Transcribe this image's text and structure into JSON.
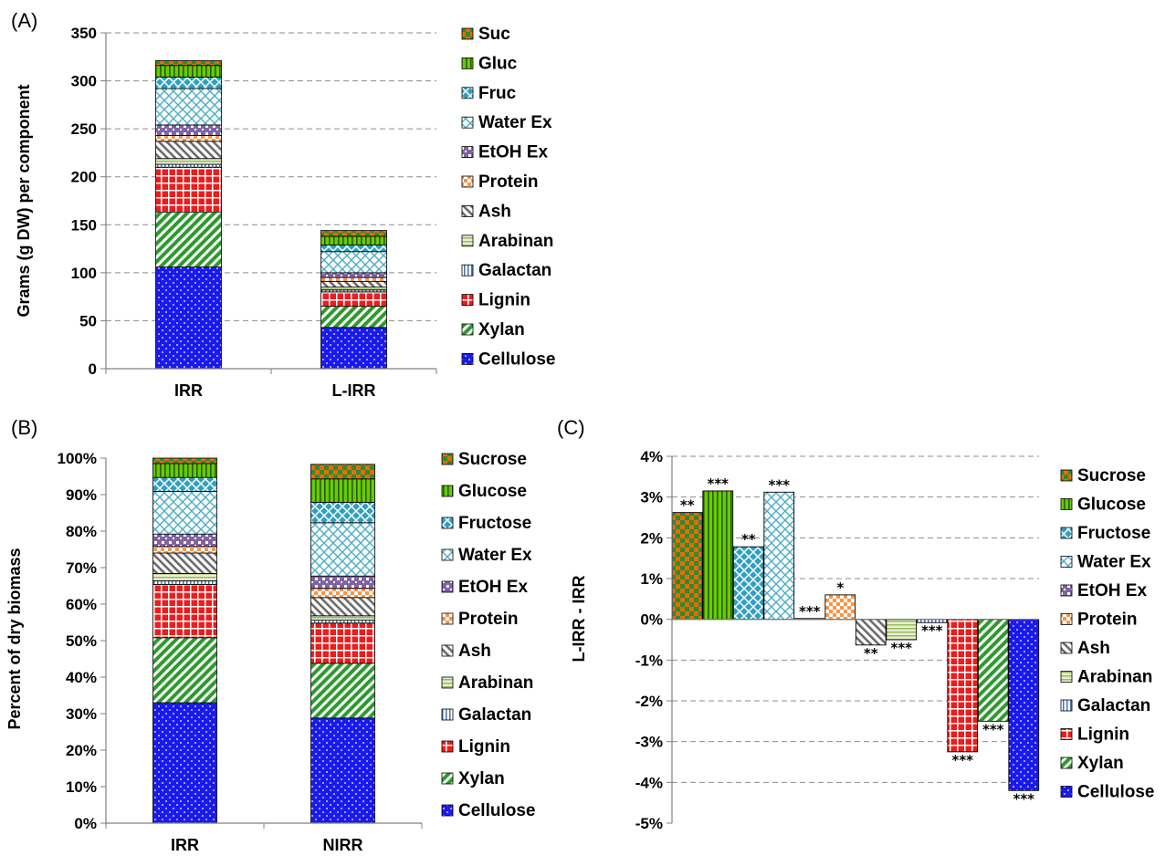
{
  "chart_data": [
    {
      "panel": "(A)",
      "type": "bar",
      "stacked": true,
      "ylabel": "Grams (g DW) per component",
      "ylim": [
        0,
        350
      ],
      "yticks": [
        "0",
        "50",
        "100",
        "150",
        "200",
        "250",
        "300",
        "350"
      ],
      "categories": [
        "IRR",
        "L-IRR"
      ],
      "grid": true,
      "legend_position": "right",
      "series": [
        {
          "name": "Cellulose",
          "pattern": "dots",
          "color": "#1a1aee",
          "values": [
            106,
            43
          ]
        },
        {
          "name": "Xylan",
          "pattern": "diag",
          "color": "#2e9a2e",
          "values": [
            57,
            22
          ]
        },
        {
          "name": "Lignin",
          "pattern": "grid",
          "color": "#ee1c1c",
          "values": [
            47,
            15
          ]
        },
        {
          "name": "Galactan",
          "pattern": "vlines",
          "color": "#4a6fb0",
          "values": [
            3,
            2
          ]
        },
        {
          "name": "Arabinan",
          "pattern": "hlines",
          "color": "#9bbb59",
          "values": [
            6,
            3
          ]
        },
        {
          "name": "Ash",
          "pattern": "hatch",
          "color": "#7f7f7f",
          "values": [
            18,
            6
          ]
        },
        {
          "name": "Protein",
          "pattern": "check",
          "color": "#f79646",
          "values": [
            6,
            4
          ]
        },
        {
          "name": "EtOH Ex",
          "pattern": "dcheck",
          "color": "#8064a2",
          "values": [
            11,
            5
          ]
        },
        {
          "name": "Water Ex",
          "pattern": "cross",
          "color": "#4bacc6",
          "values": [
            38,
            22
          ]
        },
        {
          "name": "Fruc",
          "pattern": "diamond",
          "color": "#31a0c0",
          "values": [
            12,
            7
          ]
        },
        {
          "name": "Gluc",
          "pattern": "vbars",
          "color": "#66cc00",
          "values": [
            12,
            9
          ]
        },
        {
          "name": "Suc",
          "pattern": "checker",
          "color": "#e46c0a",
          "values": [
            5,
            6
          ]
        }
      ]
    },
    {
      "panel": "(B)",
      "type": "bar",
      "stacked": true,
      "ylabel": "Percent of dry biomass",
      "ylim": [
        0,
        100
      ],
      "yticks": [
        "0%",
        "10%",
        "20%",
        "30%",
        "40%",
        "50%",
        "60%",
        "70%",
        "80%",
        "90%",
        "100%"
      ],
      "categories": [
        "IRR",
        "NIRR"
      ],
      "grid": false,
      "legend_position": "right",
      "series": [
        {
          "name": "Cellulose",
          "pattern": "dots",
          "color": "#1a1aee",
          "values": [
            33,
            28.8
          ]
        },
        {
          "name": "Xylan",
          "pattern": "diag",
          "color": "#2e9a2e",
          "values": [
            17.8,
            15
          ]
        },
        {
          "name": "Lignin",
          "pattern": "grid",
          "color": "#ee1c1c",
          "values": [
            14.6,
            11
          ]
        },
        {
          "name": "Galactan",
          "pattern": "vlines",
          "color": "#4a6fb0",
          "values": [
            1,
            0.8
          ]
        },
        {
          "name": "Arabinan",
          "pattern": "hlines",
          "color": "#9bbb59",
          "values": [
            2,
            1.2
          ]
        },
        {
          "name": "Ash",
          "pattern": "hatch",
          "color": "#7f7f7f",
          "values": [
            5.6,
            5
          ]
        },
        {
          "name": "Protein",
          "pattern": "check",
          "color": "#f79646",
          "values": [
            1.8,
            2.5
          ]
        },
        {
          "name": "EtOH Ex",
          "pattern": "dcheck",
          "color": "#8064a2",
          "values": [
            3.4,
            3.4
          ]
        },
        {
          "name": "Water Ex",
          "pattern": "cross",
          "color": "#4bacc6",
          "values": [
            11.7,
            14.6
          ]
        },
        {
          "name": "Fructose",
          "pattern": "diamond",
          "color": "#31a0c0",
          "values": [
            3.8,
            5.6
          ]
        },
        {
          "name": "Glucose",
          "pattern": "vbars",
          "color": "#66cc00",
          "values": [
            3.8,
            6.4
          ]
        },
        {
          "name": "Sucrose",
          "pattern": "checker",
          "color": "#e46c0a",
          "values": [
            1.5,
            4
          ]
        }
      ]
    },
    {
      "panel": "(C)",
      "type": "bar",
      "ylabel": "L-IRR - IRR",
      "ylim": [
        -5,
        4
      ],
      "yticks": [
        "-5%",
        "-4%",
        "-3%",
        "-2%",
        "-1%",
        "0%",
        "1%",
        "2%",
        "3%",
        "4%"
      ],
      "grid": true,
      "legend_position": "right",
      "bars": [
        {
          "name": "Sucrose",
          "value": 2.62,
          "sig": "**"
        },
        {
          "name": "Glucose",
          "value": 3.15,
          "sig": "***"
        },
        {
          "name": "Fructose",
          "value": 1.78,
          "sig": "**"
        },
        {
          "name": "Water Ex",
          "value": 3.12,
          "sig": "***"
        },
        {
          "name": "EtOH Ex",
          "value": 0.02,
          "sig": "***"
        },
        {
          "name": "Protein",
          "value": 0.6,
          "sig": "*"
        },
        {
          "name": "Ash",
          "value": -0.63,
          "sig": "**"
        },
        {
          "name": "Arabinan",
          "value": -0.5,
          "sig": "***"
        },
        {
          "name": "Galactan",
          "value": -0.08,
          "sig": "***"
        },
        {
          "name": "Lignin",
          "value": -3.25,
          "sig": "***"
        },
        {
          "name": "Xylan",
          "value": -2.5,
          "sig": "***"
        },
        {
          "name": "Cellulose",
          "value": -4.2,
          "sig": "***"
        }
      ],
      "legend": [
        "Sucrose",
        "Glucose",
        "Fructose",
        "Water Ex",
        "EtOH Ex",
        "Protein",
        "Ash",
        "Arabinan",
        "Galactan",
        "Lignin",
        "Xylan",
        "Cellulose"
      ]
    }
  ]
}
